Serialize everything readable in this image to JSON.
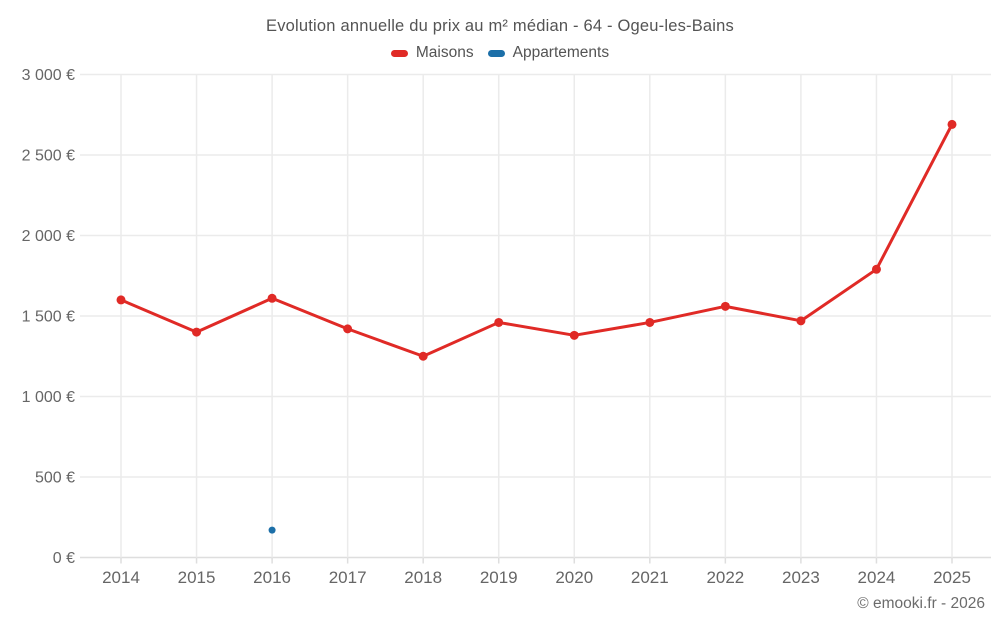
{
  "title": "Evolution annuelle du prix au m² médian - 64 - Ogeu-les-Bains",
  "footer": "© emooki.fr - 2026",
  "legend": {
    "items": [
      {
        "label": "Maisons",
        "color": "#e02a26"
      },
      {
        "label": "Appartements",
        "color": "#1c6fa8"
      }
    ]
  },
  "colors": {
    "grid": "#ebebeb",
    "axis": "#dedede",
    "tick_text": "#666666"
  },
  "chart_data": {
    "type": "line",
    "title": "Evolution annuelle du prix au m² médian - 64 - Ogeu-les-Bains",
    "x": [
      2014,
      2015,
      2016,
      2017,
      2018,
      2019,
      2020,
      2021,
      2022,
      2023,
      2024,
      2025
    ],
    "series": [
      {
        "name": "Maisons",
        "color": "#e02a26",
        "values": [
          1600,
          1400,
          1610,
          1420,
          1250,
          1460,
          1380,
          1460,
          1560,
          1470,
          1790,
          2690
        ]
      },
      {
        "name": "Appartements",
        "color": "#1c6fa8",
        "values": [
          null,
          null,
          170,
          null,
          null,
          null,
          null,
          null,
          null,
          null,
          null,
          null
        ]
      }
    ],
    "xlabel": "",
    "ylabel": "",
    "ylim": [
      0,
      3000
    ],
    "ytick_step": 500,
    "ytick_labels": [
      "0 €",
      "500 €",
      "1 000 €",
      "1 500 €",
      "2 000 €",
      "2 500 €",
      "3 000 €"
    ],
    "grid": true,
    "legend_position": "top"
  }
}
